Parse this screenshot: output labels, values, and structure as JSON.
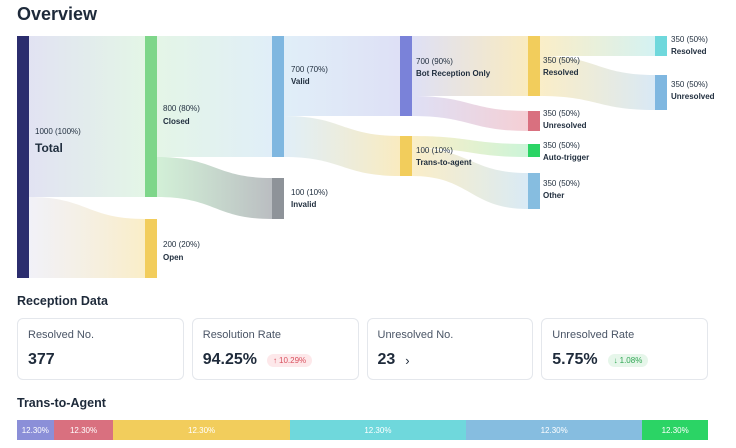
{
  "title": "Overview",
  "sankey": {
    "total": {
      "value": "1000 (100%)",
      "label": "Total"
    },
    "closed": {
      "value": "800 (80%)",
      "label": "Closed"
    },
    "open": {
      "value": "200 (20%)",
      "label": "Open"
    },
    "valid": {
      "value": "700 (70%)",
      "label": "Valid"
    },
    "invalid": {
      "value": "100 (10%)",
      "label": "Invalid"
    },
    "bot_reception": {
      "value": "700 (90%)",
      "label": "Bot Reception Only"
    },
    "trans_to_agent": {
      "value": "100 (10%)",
      "label": "Trans-to-agent"
    },
    "resolved_mid": {
      "value": "350 (50%)",
      "label": "Resolved"
    },
    "unresolved_mid": {
      "value": "350 (50%)",
      "label": "Unresolved"
    },
    "auto_trigger": {
      "value": "350 (50%)",
      "label": "Auto-trigger"
    },
    "other": {
      "value": "350 (50%)",
      "label": "Other"
    },
    "resolved_end": {
      "value": "350 (50%)",
      "label": "Resolved"
    },
    "unresolved_end": {
      "value": "350 (50%)",
      "label": "Unresolved"
    },
    "colors": {
      "total": "#2b2d6e",
      "closed": "#7ed68a",
      "open": "#f2cd5c",
      "valid": "#7fb7e0",
      "invalid": "#8e9399",
      "bot": "#7a82d9",
      "trans": "#f2cd5c",
      "resolved_mid": "#f2cd5c",
      "unresolved_mid": "#d9707f",
      "auto": "#2bd465",
      "other": "#86bde0",
      "resolved_end": "#6fd8dc",
      "unresolved_end": "#7fb7e0"
    }
  },
  "reception": {
    "title": "Reception Data",
    "cards": [
      {
        "label": "Resolved No.",
        "value": "377"
      },
      {
        "label": "Resolution Rate",
        "value": "94.25%",
        "badge": "10.29%",
        "badge_icon": "↑"
      },
      {
        "label": "Unresolved No.",
        "value": "23",
        "chevron": "›"
      },
      {
        "label": "Unresolved Rate",
        "value": "5.75%",
        "badge": "1.08%",
        "badge_icon": "↓"
      }
    ]
  },
  "trans_to_agent": {
    "title": "Trans-to-Agent",
    "segments": [
      {
        "label": "12.30%",
        "color": "#8b8fd8",
        "weight": 0.44
      },
      {
        "label": "12.30%",
        "color": "#d9707f",
        "weight": 0.72
      },
      {
        "label": "12.30%",
        "color": "#f2cd5c",
        "weight": 2.12
      },
      {
        "label": "12.30%",
        "color": "#6fd8dc",
        "weight": 2.12
      },
      {
        "label": "12.30%",
        "color": "#86bde0",
        "weight": 2.12
      },
      {
        "label": "12.30%",
        "color": "#2bd465",
        "weight": 0.79
      }
    ]
  }
}
